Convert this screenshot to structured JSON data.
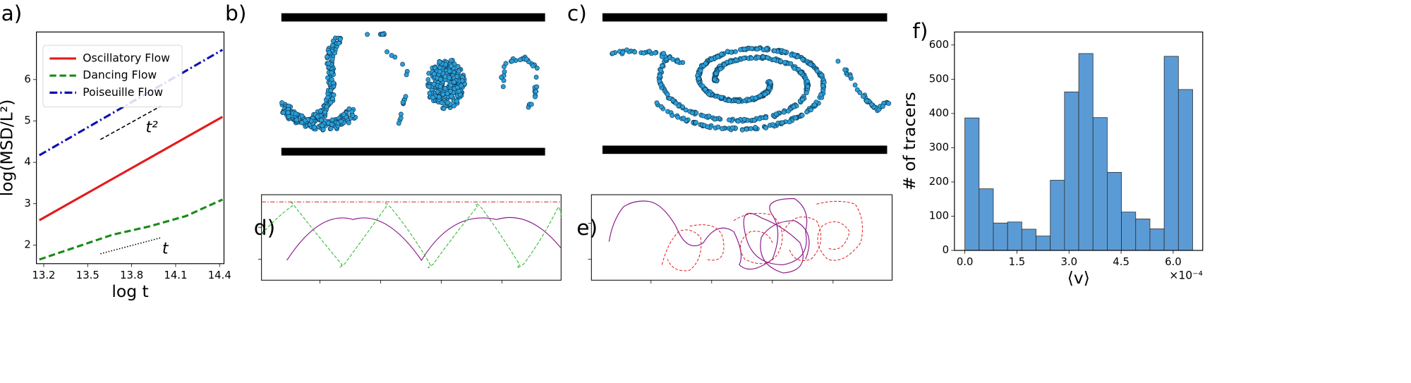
{
  "panel_labels": [
    "a)",
    "b)",
    "c)",
    "d)",
    "e)",
    "f)"
  ],
  "chart_data": [
    {
      "type": "line",
      "xlabel": "log t",
      "ylabel": "log(MSD/L²)",
      "x": [
        13.17,
        13.42,
        13.67,
        13.92,
        14.17,
        14.42
      ],
      "series": [
        {
          "name": "Oscillatory Flow",
          "color": "#e41a1c",
          "linestyle": "solid",
          "values": [
            2.6,
            3.1,
            3.6,
            4.1,
            4.6,
            5.1
          ]
        },
        {
          "name": "Dancing Flow",
          "color": "#1a8a1a",
          "linestyle": "dashed",
          "values": [
            1.65,
            1.95,
            2.25,
            2.45,
            2.7,
            3.1
          ]
        },
        {
          "name": "Poiseuille Flow",
          "color": "#1010b0",
          "linestyle": "dashdot",
          "values": [
            4.17,
            4.68,
            5.19,
            5.7,
            6.21,
            6.72
          ]
        }
      ],
      "annotations": [
        "t²",
        "t"
      ],
      "xlim": [
        13.15,
        14.43
      ],
      "xticks": [
        13.2,
        13.5,
        13.8,
        14.1,
        14.4
      ],
      "ylim": [
        1.55,
        7.15
      ],
      "yticks": [
        2,
        3,
        4,
        5,
        6
      ],
      "legend": "upper left"
    },
    {
      "type": "histogram",
      "xlabel": "⟨v⟩",
      "ylabel": "# of tracers",
      "x_offset_label": "×10⁻⁴",
      "color": "#5b9bd5",
      "bins": [
        0,
        0.41,
        0.82,
        1.23,
        1.64,
        2.05,
        2.46,
        2.87,
        3.28,
        3.69,
        4.1,
        4.51,
        4.92,
        5.33,
        5.74,
        6.15,
        6.56
      ],
      "values": [
        387,
        180,
        80,
        83,
        62,
        42,
        205,
        463,
        575,
        388,
        228,
        112,
        92,
        63,
        567,
        470
      ],
      "xlim": [
        -0.3,
        6.85
      ],
      "xticks": [
        {
          "value": 0,
          "label": "0.0"
        },
        1.5,
        {
          "value": 3,
          "label": "3.0"
        },
        4.5,
        {
          "value": 6,
          "label": "6.0"
        }
      ],
      "ylim": [
        0,
        638
      ],
      "yticks": [
        0,
        100,
        200,
        300,
        400,
        500,
        600
      ]
    }
  ]
}
